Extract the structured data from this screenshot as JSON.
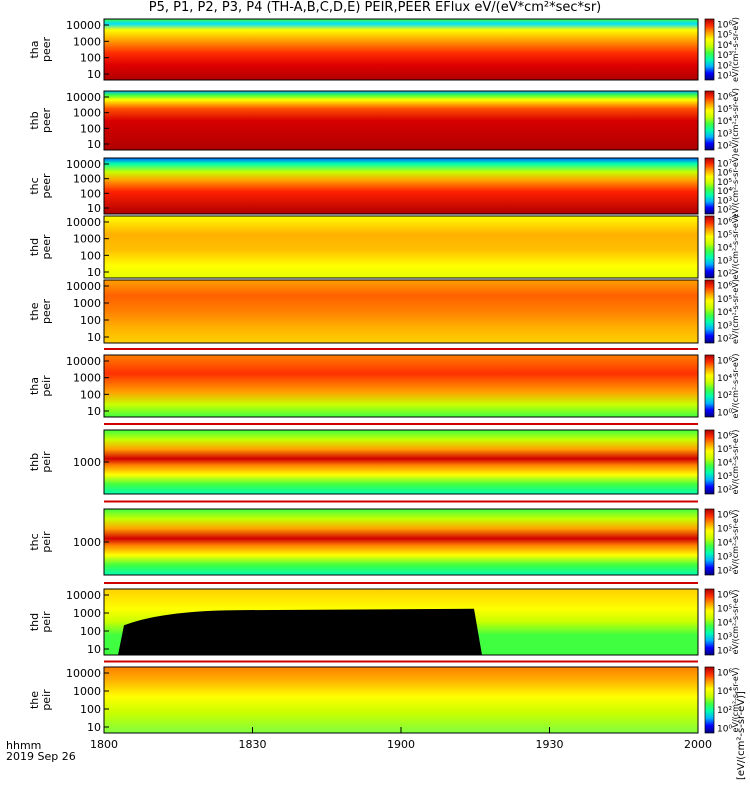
{
  "title": "P5, P1, P2, P3, P4 (TH-A,B,C,D,E) PEIR,PEER EFlux eV/(eV*cm²*sec*sr)",
  "footer": {
    "line1": "hhmm",
    "line2": "2019 Sep 26"
  },
  "colorbar_unit": "[eV/(cm²-s-sr-eV)]",
  "colorbar_unit_repeated": "eV/(cm²-s-sr-eV)",
  "chart_data": {
    "type": "heatmap",
    "description_free": true,
    "x_axis": {
      "range": [
        "1800",
        "2000"
      ],
      "ticks": [
        "1800",
        "1830",
        "1900",
        "1930",
        "2000"
      ]
    },
    "colorscale": [
      "#000080",
      "#0000ff",
      "#00b0ff",
      "#00ffb0",
      "#40ff40",
      "#c8ff00",
      "#ffff00",
      "#ffa000",
      "#ff3000",
      "#b00000"
    ],
    "panels": [
      {
        "id": "tha-peer",
        "label": [
          "tha",
          "peer"
        ],
        "y_ticks": [
          "10000",
          "1000",
          "100",
          "10"
        ],
        "cb_ticks": [
          "10⁶",
          "10⁵",
          "10⁴",
          "10³",
          "10²",
          "10¹"
        ],
        "log_scale": true
      },
      {
        "id": "thb-peer",
        "label": [
          "thb",
          "peer"
        ],
        "y_ticks": [
          "10000",
          "1000",
          "100",
          "10"
        ],
        "cb_ticks": [
          "10⁶",
          "10⁵",
          "10⁴",
          "10³",
          "10²"
        ],
        "log_scale": true
      },
      {
        "id": "thc-peer",
        "label": [
          "thc",
          "peer"
        ],
        "y_ticks": [
          "10000",
          "1000",
          "100",
          "10"
        ],
        "cb_ticks": [
          "10⁷",
          "10⁶",
          "10⁵",
          "10⁴",
          "10³",
          "10²"
        ],
        "log_scale": true
      },
      {
        "id": "thd-peer",
        "label": [
          "thd",
          "peer"
        ],
        "y_ticks": [
          "10000",
          "1000",
          "100",
          "10"
        ],
        "cb_ticks": [
          "10⁶",
          "10⁵",
          "10⁴",
          "10³",
          "10²"
        ],
        "log_scale": true
      },
      {
        "id": "the-peer",
        "label": [
          "the",
          "peer"
        ],
        "y_ticks": [
          "10000",
          "1000",
          "100",
          "10"
        ],
        "cb_ticks": [
          "10⁶",
          "10⁵",
          "10⁴",
          "10³",
          "10²"
        ],
        "log_scale": true
      },
      {
        "id": "tha-peir",
        "label": [
          "tha",
          "peir"
        ],
        "y_ticks": [
          "10000",
          "1000",
          "100",
          "10"
        ],
        "cb_ticks": [
          "10⁶",
          "10⁴",
          "10²",
          "10⁰"
        ],
        "log_scale": true
      },
      {
        "id": "thb-peir",
        "label": [
          "thb",
          "peir"
        ],
        "y_ticks": [
          "1000"
        ],
        "cb_ticks": [
          "10⁶",
          "10⁵",
          "10⁴",
          "10³",
          "10²"
        ],
        "log_scale": true
      },
      {
        "id": "thc-peir",
        "label": [
          "thc",
          "peir"
        ],
        "y_ticks": [
          "1000"
        ],
        "cb_ticks": [
          "10⁶",
          "10⁵",
          "10⁴",
          "10³",
          "10²"
        ],
        "log_scale": true
      },
      {
        "id": "thd-peir",
        "label": [
          "thd",
          "peir"
        ],
        "y_ticks": [
          "10000",
          "1000",
          "100",
          "10"
        ],
        "cb_ticks": [
          "10⁶",
          "10⁵",
          "10⁴",
          "10³",
          "10²"
        ],
        "log_scale": true
      },
      {
        "id": "the-peir",
        "label": [
          "the",
          "peir"
        ],
        "y_ticks": [
          "10000",
          "1000",
          "100",
          "10"
        ],
        "cb_ticks": [
          "10⁶",
          "10⁴",
          "10²",
          "10⁰"
        ],
        "log_scale": true
      }
    ]
  }
}
